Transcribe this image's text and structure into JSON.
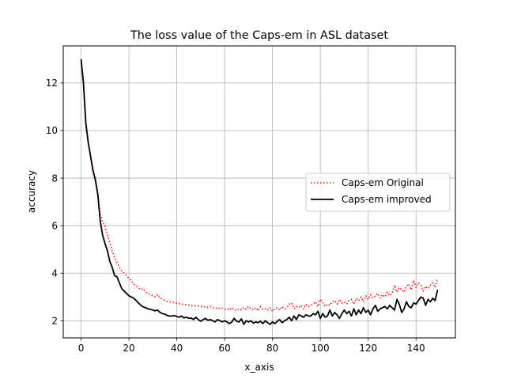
{
  "colors": {
    "original": "#ff0000",
    "improved": "#000000",
    "grid": "#b0b0b0",
    "legend_border": "#cccccc"
  },
  "chart_data": {
    "type": "line",
    "title": "The loss value of the Caps-em in ASL dataset",
    "xlabel": "x_axis",
    "ylabel": "accuracy",
    "xlim": [
      -7.45,
      156.45
    ],
    "ylim": [
      1.28,
      13.56
    ],
    "xticks": [
      0,
      20,
      40,
      60,
      80,
      100,
      120,
      140
    ],
    "yticks": [
      2,
      4,
      6,
      8,
      10,
      12
    ],
    "grid": true,
    "legend_position": "center-right",
    "x": [
      0,
      1,
      2,
      3,
      4,
      5,
      6,
      7,
      8,
      9,
      10,
      11,
      12,
      13,
      14,
      15,
      16,
      17,
      18,
      19,
      20,
      21,
      22,
      23,
      24,
      25,
      26,
      27,
      28,
      29,
      30,
      31,
      32,
      33,
      34,
      35,
      36,
      37,
      38,
      39,
      40,
      41,
      42,
      43,
      44,
      45,
      46,
      47,
      48,
      49,
      50,
      51,
      52,
      53,
      54,
      55,
      56,
      57,
      58,
      59,
      60,
      61,
      62,
      63,
      64,
      65,
      66,
      67,
      68,
      69,
      70,
      71,
      72,
      73,
      74,
      75,
      76,
      77,
      78,
      79,
      80,
      81,
      82,
      83,
      84,
      85,
      86,
      87,
      88,
      89,
      90,
      91,
      92,
      93,
      94,
      95,
      96,
      97,
      98,
      99,
      100,
      101,
      102,
      103,
      104,
      105,
      106,
      107,
      108,
      109,
      110,
      111,
      112,
      113,
      114,
      115,
      116,
      117,
      118,
      119,
      120,
      121,
      122,
      123,
      124,
      125,
      126,
      127,
      128,
      129,
      130,
      131,
      132,
      133,
      134,
      135,
      136,
      137,
      138,
      139,
      140,
      141,
      142,
      143,
      144,
      145,
      146,
      147,
      148,
      149
    ],
    "series": [
      {
        "name": "Caps-em Original",
        "color": "#ff0000",
        "style": "dotted",
        "values": [
          12.95,
          11.8,
          10.2,
          9.45,
          8.9,
          8.4,
          8.0,
          7.4,
          6.5,
          6.15,
          6.0,
          5.6,
          5.3,
          4.95,
          4.65,
          4.45,
          4.25,
          4.1,
          4.0,
          3.9,
          3.78,
          3.68,
          3.55,
          3.45,
          3.38,
          3.32,
          3.35,
          3.2,
          3.15,
          3.1,
          3.05,
          3.0,
          3.1,
          2.95,
          2.92,
          2.85,
          2.82,
          2.8,
          2.78,
          2.76,
          2.74,
          2.72,
          2.7,
          2.7,
          2.68,
          2.66,
          2.64,
          2.63,
          2.62,
          2.62,
          2.6,
          2.58,
          2.6,
          2.56,
          2.6,
          2.55,
          2.52,
          2.55,
          2.5,
          2.53,
          2.48,
          2.5,
          2.45,
          2.55,
          2.48,
          2.42,
          2.5,
          2.45,
          2.55,
          2.48,
          2.6,
          2.5,
          2.45,
          2.55,
          2.42,
          2.6,
          2.48,
          2.5,
          2.45,
          2.55,
          2.4,
          2.5,
          2.55,
          2.45,
          2.6,
          2.5,
          2.55,
          2.7,
          2.75,
          2.5,
          2.6,
          2.55,
          2.65,
          2.5,
          2.7,
          2.6,
          2.65,
          2.7,
          2.8,
          2.6,
          2.9,
          2.75,
          2.6,
          2.7,
          2.65,
          2.8,
          2.85,
          2.7,
          2.9,
          2.75,
          2.8,
          2.7,
          2.85,
          2.9,
          2.7,
          2.95,
          2.85,
          3.0,
          2.8,
          3.05,
          2.9,
          3.1,
          2.95,
          3.05,
          3.15,
          2.95,
          3.1,
          3.0,
          3.2,
          3.05,
          3.15,
          3.5,
          3.2,
          3.4,
          3.3,
          3.2,
          3.45,
          3.55,
          3.3,
          3.7,
          3.4,
          3.6,
          3.5,
          3.25,
          3.45,
          3.35,
          3.5,
          3.6,
          3.4,
          3.8
        ]
      },
      {
        "name": "Caps-em improved",
        "color": "#000000",
        "style": "solid",
        "values": [
          13.0,
          12.0,
          10.3,
          9.5,
          8.9,
          8.3,
          7.9,
          7.3,
          6.2,
          5.6,
          5.25,
          4.95,
          4.5,
          4.25,
          3.9,
          3.85,
          3.6,
          3.35,
          3.25,
          3.15,
          3.05,
          3.0,
          2.95,
          2.85,
          2.75,
          2.65,
          2.58,
          2.55,
          2.5,
          2.48,
          2.45,
          2.42,
          2.45,
          2.35,
          2.3,
          2.28,
          2.22,
          2.2,
          2.2,
          2.22,
          2.18,
          2.15,
          2.2,
          2.12,
          2.15,
          2.1,
          2.12,
          2.05,
          2.15,
          2.05,
          1.98,
          2.05,
          2.1,
          2.02,
          2.05,
          2.0,
          1.95,
          2.05,
          2.0,
          1.95,
          2.0,
          1.95,
          1.88,
          1.95,
          2.1,
          1.98,
          1.95,
          2.08,
          1.85,
          2.0,
          1.95,
          2.0,
          1.9,
          1.95,
          1.92,
          1.98,
          1.88,
          2.0,
          1.92,
          1.85,
          1.95,
          1.88,
          1.98,
          2.05,
          1.92,
          2.0,
          2.05,
          2.15,
          2.0,
          2.2,
          2.05,
          2.25,
          2.2,
          2.15,
          2.25,
          2.2,
          2.2,
          2.3,
          2.25,
          2.4,
          2.1,
          2.3,
          2.15,
          2.2,
          2.45,
          2.2,
          2.35,
          2.25,
          2.1,
          2.3,
          2.45,
          2.3,
          2.4,
          2.2,
          2.5,
          2.25,
          2.45,
          2.3,
          2.55,
          2.35,
          2.45,
          2.25,
          2.5,
          2.65,
          2.4,
          2.5,
          2.55,
          2.6,
          2.5,
          2.65,
          2.55,
          2.45,
          2.9,
          2.7,
          2.35,
          2.5,
          2.8,
          2.6,
          2.55,
          2.75,
          2.7,
          2.85,
          3.0,
          2.95,
          2.65,
          2.9,
          2.8,
          2.95,
          2.85,
          3.3
        ]
      }
    ]
  }
}
